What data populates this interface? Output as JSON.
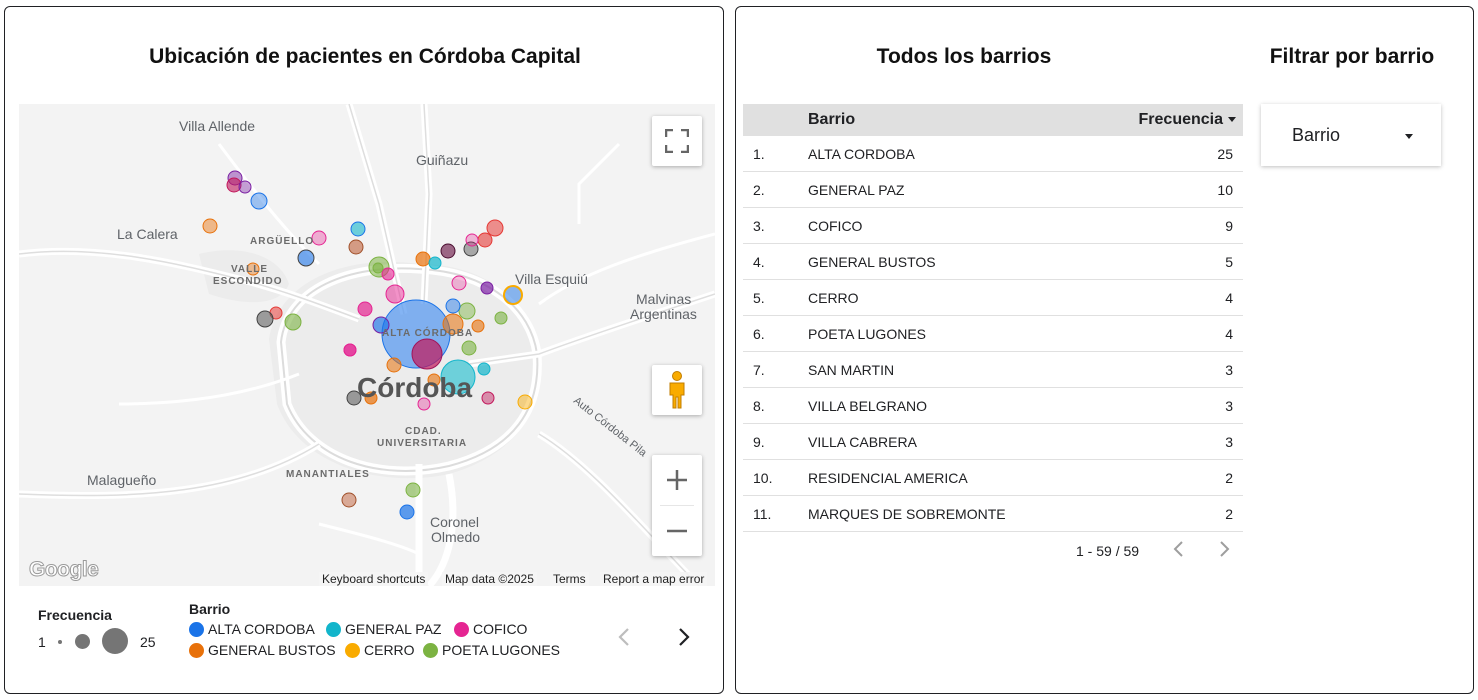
{
  "map_panel": {
    "title": "Ubicación de pacientes en Córdoba Capital",
    "places": {
      "villa_allende": "Villa Allende",
      "guinazu": "Guiñazu",
      "la_calera": "La Calera",
      "arguello": "ARGÜELLO",
      "valle": "VALLE",
      "escondido": "ESCONDIDO",
      "villa_esquiu": "Villa Esquiú",
      "malvinas": "Malvinas",
      "argentinas": "Argentinas",
      "alta_cordoba": "ALTA CÓRDOBA",
      "cordoba": "Córdoba",
      "cdad": "CDAD.",
      "universitaria": "UNIVERSITARIA",
      "manantiales": "MANANTIALES",
      "malagueno": "Malagueño",
      "coronel": "Coronel",
      "olmedo": "Olmedo",
      "auto_road": "Auto Córdoba Pila",
      "road_frag": "ba"
    },
    "controls": {
      "fullscreen_icon": "fullscreen-icon",
      "pegman_icon": "pegman-icon",
      "zoom_in_icon": "plus-icon",
      "zoom_out_icon": "minus-icon"
    },
    "footer": {
      "google_logo": "Google",
      "shortcuts": "Keyboard shortcuts",
      "map_data": "Map data ©2025",
      "terms": "Terms",
      "report": "Report a map error"
    },
    "legend": {
      "frequency_title": "Frecuencia",
      "frequency_min": "1",
      "frequency_max": "25",
      "barrio_title": "Barrio",
      "items": [
        {
          "label": "ALTA CORDOBA",
          "color": "#1a73e8"
        },
        {
          "label": "GENERAL PAZ",
          "color": "#12b5cb"
        },
        {
          "label": "COFICO",
          "color": "#e52592"
        },
        {
          "label": "GENERAL BUSTOS",
          "color": "#e8710a"
        },
        {
          "label": "CERRO",
          "color": "#f9ab00"
        },
        {
          "label": "POETA LUGONES",
          "color": "#7cb342"
        }
      ],
      "prev_icon": "chevron-left-icon",
      "next_icon": "chevron-right-icon"
    }
  },
  "table_panel": {
    "title": "Todos los barrios",
    "columns": {
      "barrio": "Barrio",
      "frecuencia": "Frecuencia"
    },
    "sort": "descending",
    "rows": [
      {
        "idx": "1.",
        "barrio": "ALTA CORDOBA",
        "freq": "25"
      },
      {
        "idx": "2.",
        "barrio": "GENERAL PAZ",
        "freq": "10"
      },
      {
        "idx": "3.",
        "barrio": "COFICO",
        "freq": "9"
      },
      {
        "idx": "4.",
        "barrio": "GENERAL BUSTOS",
        "freq": "5"
      },
      {
        "idx": "5.",
        "barrio": "CERRO",
        "freq": "4"
      },
      {
        "idx": "6.",
        "barrio": "POETA LUGONES",
        "freq": "4"
      },
      {
        "idx": "7.",
        "barrio": "SAN MARTIN",
        "freq": "3"
      },
      {
        "idx": "8.",
        "barrio": "VILLA BELGRANO",
        "freq": "3"
      },
      {
        "idx": "9.",
        "barrio": "VILLA CABRERA",
        "freq": "3"
      },
      {
        "idx": "10.",
        "barrio": "RESIDENCIAL AMERICA",
        "freq": "2"
      },
      {
        "idx": "11.",
        "barrio": "MARQUES DE SOBREMONTE",
        "freq": "2"
      }
    ],
    "pager": {
      "text": "1 - 59 / 59",
      "prev_icon": "chevron-left-icon",
      "next_icon": "chevron-right-icon"
    }
  },
  "filter_panel": {
    "title": "Filtrar por barrio",
    "dropdown_label": "Barrio",
    "caret_icon": "caret-down-icon"
  }
}
